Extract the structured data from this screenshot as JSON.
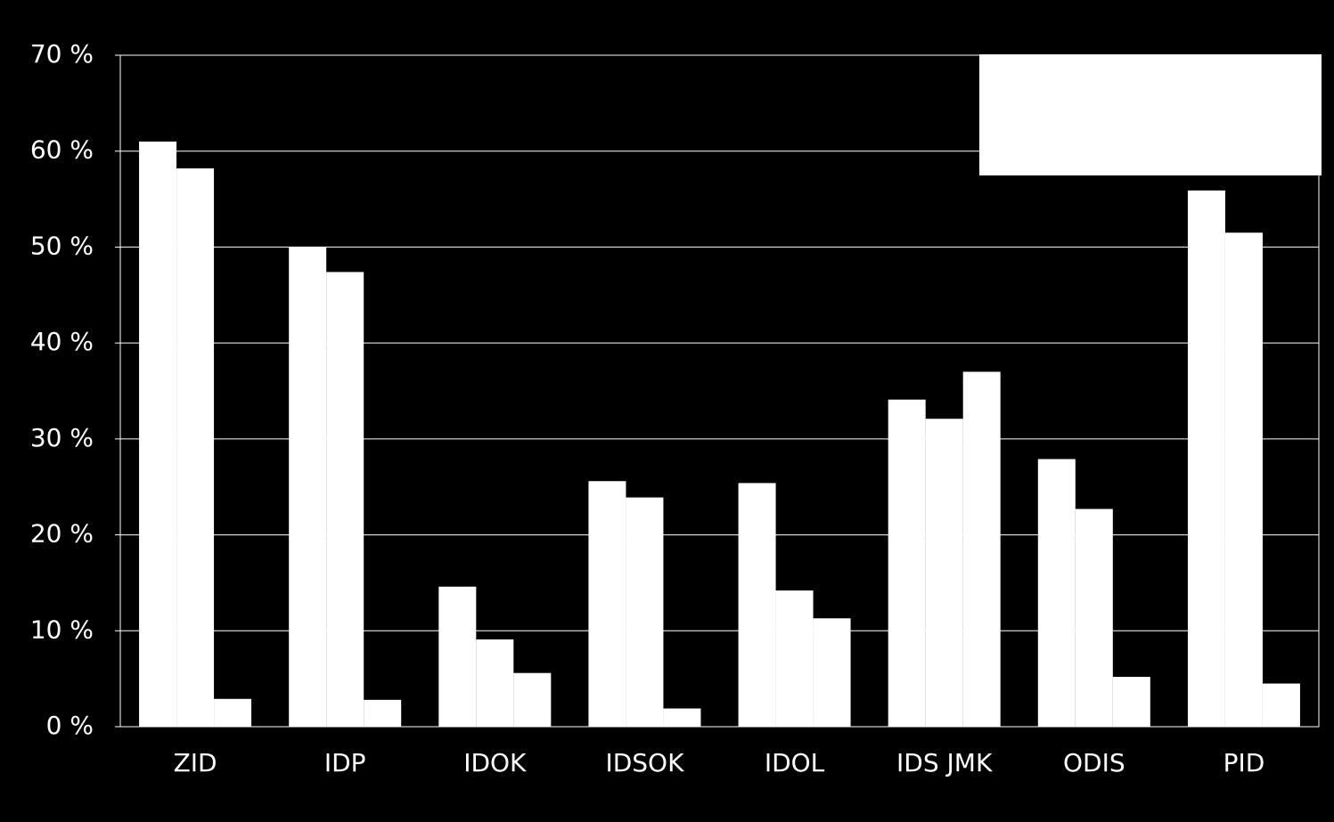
{
  "chart_data": {
    "type": "bar",
    "categories": [
      "ZID",
      "IDP",
      "IDOK",
      "IDSOK",
      "IDOL",
      "IDS JMK",
      "ODIS",
      "PID"
    ],
    "series": [
      {
        "color": "#ffffff",
        "values": [
          61.0,
          50.0,
          14.6,
          25.6,
          25.4,
          34.1,
          27.9,
          55.9
        ]
      },
      {
        "color": "#ffffff",
        "values": [
          58.2,
          47.4,
          9.1,
          23.9,
          14.2,
          32.1,
          22.7,
          51.5
        ]
      },
      {
        "color": "#ffffff",
        "values": [
          2.9,
          2.8,
          5.6,
          1.9,
          11.3,
          37.0,
          5.2,
          4.5
        ]
      }
    ],
    "ylim": [
      0,
      70
    ],
    "yticks": [
      {
        "value": 0,
        "label": "0 %"
      },
      {
        "value": 10,
        "label": "10 %"
      },
      {
        "value": 20,
        "label": "20 %"
      },
      {
        "value": 30,
        "label": "30 %"
      },
      {
        "value": 40,
        "label": "40 %"
      },
      {
        "value": 50,
        "label": "50 %"
      },
      {
        "value": 60,
        "label": "60 %"
      },
      {
        "value": 70,
        "label": "70 %"
      }
    ],
    "grid": true
  }
}
